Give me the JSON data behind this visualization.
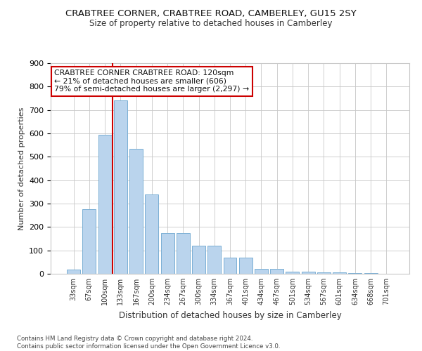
{
  "title1": "CRABTREE CORNER, CRABTREE ROAD, CAMBERLEY, GU15 2SY",
  "title2": "Size of property relative to detached houses in Camberley",
  "xlabel": "Distribution of detached houses by size in Camberley",
  "ylabel": "Number of detached properties",
  "categories": [
    "33sqm",
    "67sqm",
    "100sqm",
    "133sqm",
    "167sqm",
    "200sqm",
    "234sqm",
    "267sqm",
    "300sqm",
    "334sqm",
    "367sqm",
    "401sqm",
    "434sqm",
    "467sqm",
    "501sqm",
    "534sqm",
    "567sqm",
    "601sqm",
    "634sqm",
    "668sqm",
    "701sqm"
  ],
  "values": [
    18,
    275,
    595,
    740,
    535,
    340,
    175,
    175,
    120,
    120,
    68,
    68,
    22,
    22,
    10,
    10,
    6,
    6,
    4,
    4,
    0
  ],
  "bar_color": "#bad4ed",
  "bar_edge_color": "#7aafd4",
  "vline_color": "#cc0000",
  "annotation_text": "CRABTREE CORNER CRABTREE ROAD: 120sqm\n← 21% of detached houses are smaller (606)\n79% of semi-detached houses are larger (2,297) →",
  "annotation_box_color": "#ffffff",
  "annotation_box_edge": "#cc0000",
  "ylim": [
    0,
    900
  ],
  "yticks": [
    0,
    100,
    200,
    300,
    400,
    500,
    600,
    700,
    800,
    900
  ],
  "footnote": "Contains HM Land Registry data © Crown copyright and database right 2024.\nContains public sector information licensed under the Open Government Licence v3.0.",
  "bg_color": "#ffffff",
  "grid_color": "#c8c8c8"
}
